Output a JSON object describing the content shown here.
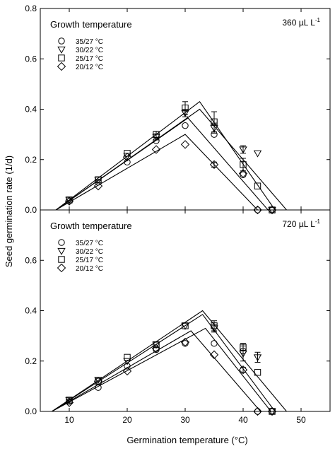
{
  "colors": {
    "ink": "#000000",
    "background": "#ffffff"
  },
  "chart_data": {
    "type": "scatter",
    "shared_x": {
      "label": "Germination temperature (°C)",
      "range": [
        5,
        55
      ],
      "ticks": [
        10,
        20,
        30,
        40,
        50
      ],
      "tick_labels": [
        "10",
        "20",
        "30",
        "40",
        "50"
      ]
    },
    "shared_y": {
      "label": "Seed germination rate (1/d)",
      "range": [
        0,
        0.8
      ],
      "ticks": [
        0,
        0.2,
        0.4,
        0.6,
        0.8
      ],
      "tick_labels": [
        "0.0",
        "0.2",
        "0.4",
        "0.6",
        "0.8"
      ]
    },
    "grid": false,
    "legend_position": "top-left",
    "panels": [
      {
        "note": "360 µL L",
        "note_superscript": "-1",
        "legend_title": "Growth temperature",
        "series": [
          {
            "name": "35/27 °C",
            "marker": "circle",
            "points": [
              [
                10,
                0.035
              ],
              [
                15,
                0.11
              ],
              [
                20,
                0.19
              ],
              [
                25,
                0.275
              ],
              [
                30,
                0.335
              ],
              [
                35,
                0.3
              ],
              [
                40,
                0.14
              ],
              [
                42.5,
                0.0
              ],
              [
                45,
                0.0
              ]
            ],
            "errors": [
              0,
              0,
              0,
              0,
              0,
              0,
              0,
              0,
              0
            ],
            "fit": [
              [
                7.7,
                0
              ],
              [
                30.5,
                0.365
              ],
              [
                44.3,
                0
              ]
            ]
          },
          {
            "name": "30/22 °C",
            "marker": "triangle-down",
            "points": [
              [
                10,
                0.04
              ],
              [
                15,
                0.12
              ],
              [
                20,
                0.215
              ],
              [
                25,
                0.29
              ],
              [
                30,
                0.385
              ],
              [
                35,
                0.325
              ],
              [
                40,
                0.24
              ],
              [
                42.5,
                0.225
              ],
              [
                45,
                0.0
              ]
            ],
            "errors": [
              0,
              0,
              0,
              0.012,
              0.015,
              0.02,
              0.015,
              0,
              0
            ],
            "fit": [
              [
                7.7,
                0
              ],
              [
                32.5,
                0.4
              ],
              [
                47.5,
                0
              ]
            ]
          },
          {
            "name": "25/17 °C",
            "marker": "square",
            "points": [
              [
                10,
                0.04
              ],
              [
                15,
                0.12
              ],
              [
                20,
                0.225
              ],
              [
                25,
                0.3
              ],
              [
                30,
                0.405
              ],
              [
                35,
                0.35
              ],
              [
                40,
                0.18
              ],
              [
                42.5,
                0.095
              ],
              [
                45,
                0.0
              ]
            ],
            "errors": [
              0,
              0,
              0,
              0.012,
              0.025,
              0.04,
              0.025,
              0,
              0
            ],
            "fit": [
              [
                7.7,
                0
              ],
              [
                32.5,
                0.43
              ],
              [
                45.5,
                0
              ]
            ]
          },
          {
            "name": "20/12 °C",
            "marker": "diamond",
            "points": [
              [
                10,
                0.035
              ],
              [
                15,
                0.095
              ],
              [
                20,
                0.21
              ],
              [
                25,
                0.24
              ],
              [
                30,
                0.26
              ],
              [
                35,
                0.18
              ],
              [
                40,
                0.145
              ],
              [
                42.5,
                0.0
              ],
              [
                45,
                0.0
              ]
            ],
            "errors": [
              0,
              0,
              0,
              0,
              0,
              0.01,
              0,
              0,
              0
            ],
            "fit": [
              [
                7.7,
                0
              ],
              [
                30,
                0.3
              ],
              [
                42.5,
                0
              ]
            ]
          }
        ]
      },
      {
        "note": "720 µL L",
        "note_superscript": "-1",
        "legend_title": "Growth temperature",
        "series": [
          {
            "name": "35/27 °C",
            "marker": "circle",
            "points": [
              [
                10,
                0.04
              ],
              [
                15,
                0.095
              ],
              [
                20,
                0.18
              ],
              [
                25,
                0.245
              ],
              [
                30,
                0.27
              ],
              [
                35,
                0.27
              ],
              [
                40,
                0.24
              ],
              [
                42.5,
                0.0
              ],
              [
                45,
                0.0
              ]
            ],
            "errors": [
              0,
              0,
              0,
              0,
              0,
              0,
              0,
              0,
              0
            ],
            "fit": [
              [
                7,
                0
              ],
              [
                31,
                0.32
              ],
              [
                43,
                0
              ]
            ]
          },
          {
            "name": "30/22 °C",
            "marker": "triangle-down",
            "points": [
              [
                10,
                0.045
              ],
              [
                15,
                0.125
              ],
              [
                20,
                0.2
              ],
              [
                25,
                0.265
              ],
              [
                30,
                0.34
              ],
              [
                35,
                0.33
              ],
              [
                40,
                0.23
              ],
              [
                42.5,
                0.215
              ],
              [
                45,
                0.0
              ]
            ],
            "errors": [
              0,
              0,
              0,
              0,
              0,
              0.015,
              0.03,
              0.02,
              0
            ],
            "fit": [
              [
                7,
                0
              ],
              [
                33,
                0.4
              ],
              [
                47.5,
                0
              ]
            ]
          },
          {
            "name": "25/17 °C",
            "marker": "square",
            "points": [
              [
                10,
                0.045
              ],
              [
                15,
                0.12
              ],
              [
                20,
                0.215
              ],
              [
                25,
                0.265
              ],
              [
                30,
                0.34
              ],
              [
                35,
                0.34
              ],
              [
                40,
                0.255
              ],
              [
                42.5,
                0.155
              ],
              [
                45,
                0.0
              ]
            ],
            "errors": [
              0,
              0,
              0,
              0,
              0,
              0.02,
              0.015,
              0,
              0
            ],
            "fit": [
              [
                7,
                0
              ],
              [
                33,
                0.385
              ],
              [
                45.5,
                0
              ]
            ]
          },
          {
            "name": "20/12 °C",
            "marker": "diamond",
            "points": [
              [
                10,
                0.035
              ],
              [
                15,
                0.12
              ],
              [
                20,
                0.16
              ],
              [
                25,
                0.25
              ],
              [
                30,
                0.275
              ],
              [
                35,
                0.225
              ],
              [
                40,
                0.165
              ],
              [
                42.5,
                0.0
              ],
              [
                45,
                0.0
              ]
            ],
            "errors": [
              0,
              0,
              0,
              0,
              0,
              0,
              0.01,
              0,
              0
            ],
            "fit": [
              [
                7,
                0
              ],
              [
                33.5,
                0.33
              ],
              [
                44.8,
                0
              ]
            ]
          }
        ]
      }
    ]
  }
}
